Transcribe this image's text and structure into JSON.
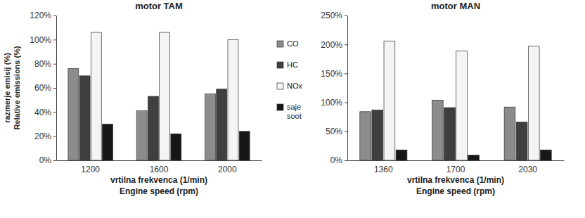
{
  "chart_data": [
    {
      "type": "bar",
      "title": "motor TAM",
      "y_label": [
        "razmerje emisij (%)",
        "Relative emissions (%)"
      ],
      "x_label": [
        "vrtilna frekvenca (1/min)",
        "Engine speed (rpm)"
      ],
      "categories": [
        "1200",
        "1600",
        "2000"
      ],
      "series": [
        {
          "name": "CO",
          "color": "#8c8c8c",
          "values": [
            76,
            41,
            55
          ]
        },
        {
          "name": "HC",
          "color": "#3f3f3f",
          "values": [
            70,
            53,
            59
          ]
        },
        {
          "name": "NOx",
          "color": "#f4f4f4",
          "values": [
            106,
            106,
            100
          ]
        },
        {
          "name": "saje soot",
          "color": "#161616",
          "values": [
            30,
            22,
            24
          ]
        }
      ],
      "ylim": [
        0,
        120
      ],
      "yticks": [
        {
          "value": 0,
          "label": "0%"
        },
        {
          "value": 20,
          "label": "20%"
        },
        {
          "value": 40,
          "label": "40%"
        },
        {
          "value": 60,
          "label": "60%"
        },
        {
          "value": 80,
          "label": "80%"
        },
        {
          "value": 100,
          "label": "100%"
        },
        {
          "value": 120,
          "label": "120%"
        }
      ],
      "legend": "right"
    },
    {
      "type": "bar",
      "title": "motor MAN",
      "x_label": [
        "vrtilna frekvenca (1/min)",
        "Engine speed (rpm)"
      ],
      "categories": [
        "1360",
        "1700",
        "2030"
      ],
      "series": [
        {
          "color": "#8c8c8c",
          "values": [
            84,
            104,
            92
          ]
        },
        {
          "color": "#3f3f3f",
          "values": [
            87,
            91,
            66
          ]
        },
        {
          "color": "#f4f4f4",
          "values": [
            206,
            189,
            197
          ]
        },
        {
          "color": "#161616",
          "values": [
            18,
            9,
            18
          ]
        }
      ],
      "ylim": [
        0,
        250
      ],
      "yticks": [
        {
          "value": 0,
          "label": "0%"
        },
        {
          "value": 50,
          "label": "50%"
        },
        {
          "value": 100,
          "label": "100%"
        },
        {
          "value": 150,
          "label": "150%"
        },
        {
          "value": 200,
          "label": "200%"
        },
        {
          "value": 250,
          "label": "250%"
        }
      ]
    }
  ]
}
